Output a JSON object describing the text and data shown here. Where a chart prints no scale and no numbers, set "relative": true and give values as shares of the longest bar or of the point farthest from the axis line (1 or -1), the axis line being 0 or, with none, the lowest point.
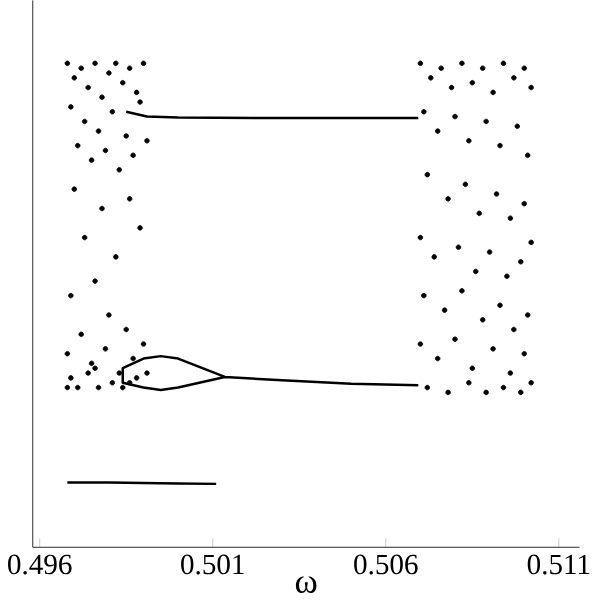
{
  "chart_data": {
    "type": "scatter",
    "xlabel": "ω",
    "relative": true,
    "xlim": [
      0.4958,
      0.5116
    ],
    "xticks": [
      0.496,
      0.501,
      0.506,
      0.511
    ],
    "series": [
      {
        "marker": "circle",
        "color": "#000000",
        "x": [
          0.4968,
          0.497,
          0.4972,
          0.4974,
          0.4976,
          0.4978,
          0.498,
          0.4982,
          0.4984,
          0.4986,
          0.4988,
          0.499,
          0.4969,
          0.4973,
          0.4977,
          0.4981,
          0.4985,
          0.4989,
          0.4971,
          0.4975,
          0.4979,
          0.4983,
          0.4987,
          0.4991,
          0.497,
          0.4978,
          0.4986,
          0.4973,
          0.4982,
          0.4976,
          0.4989,
          0.4969,
          0.498,
          0.4985,
          0.4972,
          0.499,
          0.4968,
          0.4975,
          0.4979,
          0.4983,
          0.4987,
          0.4969,
          0.4971,
          0.4974,
          0.4977,
          0.4981,
          0.4984,
          0.4988,
          0.4968,
          0.4976,
          0.4986,
          0.4991
        ],
        "values": [
          1.0,
          0.97,
          0.99,
          0.95,
          1.0,
          0.93,
          0.98,
          1.0,
          0.96,
          0.99,
          0.94,
          1.0,
          0.91,
          0.88,
          0.86,
          0.9,
          0.85,
          0.92,
          0.83,
          0.8,
          0.82,
          0.78,
          0.81,
          0.84,
          0.74,
          0.7,
          0.72,
          0.64,
          0.6,
          0.55,
          0.66,
          0.52,
          0.48,
          0.45,
          0.44,
          0.42,
          0.4,
          0.38,
          0.41,
          0.36,
          0.39,
          0.35,
          0.33,
          0.36,
          0.33,
          0.34,
          0.33,
          0.35,
          0.33,
          0.37,
          0.34,
          0.36
        ]
      },
      {
        "marker": "circle",
        "color": "#000000",
        "x": [
          0.507,
          0.5073,
          0.5076,
          0.5079,
          0.5082,
          0.5085,
          0.5088,
          0.5091,
          0.5094,
          0.5097,
          0.51,
          0.5102,
          0.5071,
          0.5075,
          0.508,
          0.5084,
          0.5089,
          0.5093,
          0.5098,
          0.5101,
          0.5072,
          0.5078,
          0.5083,
          0.5087,
          0.5092,
          0.5096,
          0.51,
          0.507,
          0.5074,
          0.5081,
          0.5086,
          0.509,
          0.5095,
          0.5099,
          0.5102,
          0.5071,
          0.5077,
          0.5082,
          0.5088,
          0.5093,
          0.5097,
          0.5101,
          0.507,
          0.5075,
          0.508,
          0.5085,
          0.5091,
          0.5096,
          0.51,
          0.5072,
          0.5078,
          0.5084,
          0.5089,
          0.5094,
          0.5099,
          0.5102
        ],
        "values": [
          1.0,
          0.97,
          0.99,
          0.95,
          1.0,
          0.96,
          0.99,
          0.94,
          1.0,
          0.97,
          0.99,
          0.95,
          0.9,
          0.86,
          0.89,
          0.84,
          0.88,
          0.83,
          0.87,
          0.81,
          0.77,
          0.72,
          0.75,
          0.69,
          0.73,
          0.68,
          0.71,
          0.64,
          0.6,
          0.62,
          0.57,
          0.61,
          0.56,
          0.59,
          0.63,
          0.52,
          0.49,
          0.53,
          0.47,
          0.5,
          0.45,
          0.48,
          0.42,
          0.39,
          0.43,
          0.37,
          0.41,
          0.36,
          0.4,
          0.33,
          0.32,
          0.34,
          0.32,
          0.33,
          0.32,
          0.34
        ]
      },
      {
        "type": "line",
        "marker": "none",
        "line_style": "solid",
        "color": "#000000",
        "x": [
          0.4985,
          0.4991,
          0.5,
          0.503,
          0.506,
          0.50694
        ],
        "values": [
          0.9,
          0.89,
          0.888,
          0.887,
          0.887,
          0.887
        ]
      },
      {
        "type": "line",
        "marker": "none",
        "line_style": "solid",
        "color": "#000000",
        "x": [
          0.50694,
          0.505,
          0.503,
          0.50135,
          0.5,
          0.4995,
          0.499,
          0.4984,
          0.4984,
          0.499,
          0.4995,
          0.5,
          0.50135
        ],
        "values": [
          0.335,
          0.338,
          0.345,
          0.352,
          0.39,
          0.395,
          0.39,
          0.37,
          0.34,
          0.33,
          0.325,
          0.33,
          0.352
        ]
      },
      {
        "type": "line",
        "marker": "none",
        "line_style": "solid",
        "color": "#000000",
        "x": [
          0.4968,
          0.498,
          0.499,
          0.5,
          0.5011
        ],
        "values": [
          0.134,
          0.134,
          0.133,
          0.132,
          0.131
        ]
      }
    ]
  }
}
